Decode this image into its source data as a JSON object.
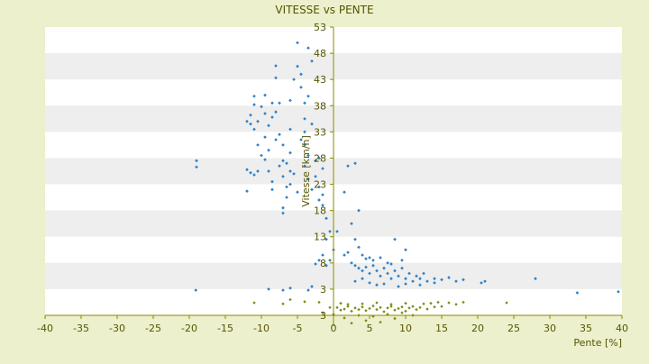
{
  "chart_data": {
    "type": "scatter",
    "title": "VITESSE vs PENTE",
    "xlabel": "Pente [%]",
    "ylabel": "Vitesse [km/h]",
    "xlim": [
      -40,
      40
    ],
    "ylim": [
      -2,
      53
    ],
    "x_ticks": [
      -40,
      -35,
      -30,
      -25,
      -20,
      -15,
      -10,
      -5,
      0,
      5,
      10,
      15,
      20,
      25,
      30,
      35,
      40
    ],
    "y_ticks": [
      3,
      8,
      13,
      18,
      23,
      28,
      33,
      38,
      43,
      48,
      53
    ],
    "y_tick_labels": [
      "3",
      "8",
      "13",
      "18",
      "23",
      "28",
      "33",
      "38",
      "43",
      "48",
      "53"
    ],
    "y_tick_label_below_axis": "3",
    "grid": "horizontal-bands",
    "colors": {
      "background": "#ecf0cc",
      "plot_band_a": "#ffffff",
      "plot_band_b": "#eeeeee",
      "axis": "#8a8a00",
      "text": "#555500",
      "series_primary": "#2f82c8",
      "series_secondary": "#7a8a10"
    },
    "series": [
      {
        "values": [
          [
            -19,
            27.5
          ],
          [
            -19,
            26.3
          ],
          [
            -19.1,
            2.8
          ],
          [
            -12,
            25.8
          ],
          [
            -11.5,
            25.2
          ],
          [
            -12,
            21.7
          ],
          [
            -11,
            24.8
          ],
          [
            -10.5,
            25.5
          ],
          [
            -11.5,
            34.5
          ],
          [
            -11.5,
            36.2
          ],
          [
            -11,
            38.2
          ],
          [
            -11,
            39.8
          ],
          [
            -10.5,
            35.0
          ],
          [
            -10,
            37.8
          ],
          [
            -9.5,
            36.5
          ],
          [
            -9.5,
            40.0
          ],
          [
            -9,
            34.2
          ],
          [
            -8.5,
            38.5
          ],
          [
            -8.5,
            35.8
          ],
          [
            -10,
            28.5
          ],
          [
            -9.5,
            27.7
          ],
          [
            -9,
            29.5
          ],
          [
            -9,
            25.5
          ],
          [
            -8.5,
            23.5
          ],
          [
            -8.5,
            22.0
          ],
          [
            -8,
            45.6
          ],
          [
            -8,
            43.3
          ],
          [
            -8,
            36.8
          ],
          [
            -7.5,
            38.5
          ],
          [
            -7.5,
            32.5
          ],
          [
            -7,
            30.5
          ],
          [
            -7,
            27.5
          ],
          [
            -7,
            24.5
          ],
          [
            -6.5,
            22.5
          ],
          [
            -7,
            18.5
          ],
          [
            -7,
            17.5
          ],
          [
            -6.5,
            20.5
          ],
          [
            -6,
            25.5
          ],
          [
            -6,
            29.0
          ],
          [
            -6,
            33.5
          ],
          [
            -6,
            39.0
          ],
          [
            -5.5,
            43.0
          ],
          [
            -5,
            50.0
          ],
          [
            -5,
            45.5
          ],
          [
            -4.5,
            44.0
          ],
          [
            -4.5,
            41.5
          ],
          [
            -4,
            38.5
          ],
          [
            -4,
            35.5
          ],
          [
            -3.5,
            39.8
          ],
          [
            -4,
            30.5
          ],
          [
            -3.5,
            28.5
          ],
          [
            -4,
            26.5
          ],
          [
            -3.5,
            24.0
          ],
          [
            -3,
            22.0
          ],
          [
            -4.5,
            31.5
          ],
          [
            -3.5,
            49.0
          ],
          [
            -3,
            46.5
          ],
          [
            -2.5,
            27.5
          ],
          [
            -2.5,
            24.5
          ],
          [
            -2,
            22.5
          ],
          [
            -1.5,
            21.0
          ],
          [
            -2,
            20.0
          ],
          [
            -1.5,
            19.0
          ],
          [
            -1,
            16.5
          ],
          [
            -0.5,
            14.0
          ],
          [
            -1,
            12.5
          ],
          [
            -1.5,
            9.5
          ],
          [
            -2,
            8.5
          ],
          [
            -2.5,
            7.8
          ],
          [
            -1,
            7.5
          ],
          [
            -0.5,
            8.5
          ],
          [
            -3,
            3.5
          ],
          [
            -3.5,
            2.8
          ],
          [
            -6,
            3.2
          ],
          [
            -7,
            2.8
          ],
          [
            -9,
            3.0
          ],
          [
            -5.5,
            25.0
          ],
          [
            -6.5,
            27.0
          ],
          [
            -8,
            31.5
          ],
          [
            -10.5,
            30.5
          ],
          [
            -11,
            33.5
          ],
          [
            -12,
            35.0
          ],
          [
            -9.5,
            32.0
          ],
          [
            -7.5,
            26.5
          ],
          [
            -5,
            21.5
          ],
          [
            -6,
            23.0
          ],
          [
            -4,
            33.0
          ],
          [
            -3,
            34.5
          ],
          [
            -2,
            28.0
          ],
          [
            -1.5,
            26.0
          ],
          [
            0,
            10.5
          ],
          [
            0.5,
            14.0
          ],
          [
            1.5,
            21.5
          ],
          [
            2,
            26.5
          ],
          [
            3,
            27.0
          ],
          [
            3.5,
            18.0
          ],
          [
            2.5,
            15.5
          ],
          [
            3,
            12.5
          ],
          [
            3.5,
            11.0
          ],
          [
            4,
            9.5
          ],
          [
            5,
            9.0
          ],
          [
            8.5,
            12.5
          ],
          [
            10,
            10.5
          ],
          [
            1.5,
            9.5
          ],
          [
            2,
            10.0
          ],
          [
            2.5,
            8.0
          ],
          [
            3,
            7.5
          ],
          [
            3.5,
            7.0
          ],
          [
            4,
            6.5
          ],
          [
            4.5,
            7.2
          ],
          [
            5,
            6.0
          ],
          [
            5.5,
            7.5
          ],
          [
            6,
            6.5
          ],
          [
            6.5,
            5.5
          ],
          [
            7,
            7.0
          ],
          [
            7.5,
            6.0
          ],
          [
            8,
            5.0
          ],
          [
            8.5,
            6.5
          ],
          [
            9,
            5.5
          ],
          [
            9.5,
            7.0
          ],
          [
            10,
            5.0
          ],
          [
            10.5,
            6.0
          ],
          [
            11,
            4.5
          ],
          [
            11.5,
            5.5
          ],
          [
            12,
            5.0
          ],
          [
            12.5,
            6.0
          ],
          [
            13,
            4.5
          ],
          [
            14,
            5.0
          ],
          [
            15,
            4.8
          ],
          [
            16,
            5.2
          ],
          [
            17,
            4.5
          ],
          [
            18,
            4.8
          ],
          [
            20.5,
            4.2
          ],
          [
            21,
            4.5
          ],
          [
            28,
            5.0
          ],
          [
            33.8,
            2.3
          ],
          [
            39.5,
            2.5
          ],
          [
            3,
            4.5
          ],
          [
            4,
            5.0
          ],
          [
            5,
            4.2
          ],
          [
            6,
            3.8
          ],
          [
            7,
            4.0
          ],
          [
            7.5,
            8.0
          ],
          [
            6.5,
            9.0
          ],
          [
            5.5,
            8.5
          ],
          [
            4.5,
            8.8
          ],
          [
            9,
            3.5
          ],
          [
            10,
            4.0
          ],
          [
            12,
            3.8
          ],
          [
            14,
            4.2
          ],
          [
            8,
            7.8
          ],
          [
            9.5,
            8.5
          ]
        ]
      },
      {
        "values": [
          [
            0.5,
            -0.5
          ],
          [
            1,
            -1.0
          ],
          [
            1.5,
            -0.8
          ],
          [
            2,
            -0.3
          ],
          [
            2.5,
            -1.2
          ],
          [
            3,
            -0.6
          ],
          [
            3.5,
            -0.9
          ],
          [
            4,
            -0.4
          ],
          [
            4.5,
            -1.1
          ],
          [
            5,
            -0.7
          ],
          [
            5.5,
            -0.2
          ],
          [
            6,
            -0.9
          ],
          [
            6.5,
            -0.5
          ],
          [
            7,
            -1.3
          ],
          [
            7.5,
            -0.6
          ],
          [
            8,
            -0.3
          ],
          [
            8.5,
            -1.0
          ],
          [
            9,
            -0.7
          ],
          [
            9.5,
            -0.4
          ],
          [
            10,
            -1.2
          ],
          [
            10.5,
            -0.6
          ],
          [
            11,
            -0.3
          ],
          [
            11.5,
            -0.9
          ],
          [
            12,
            -0.5
          ],
          [
            12.5,
            0.2
          ],
          [
            13,
            -0.8
          ],
          [
            13.5,
            0.3
          ],
          [
            14,
            -0.4
          ],
          [
            14.5,
            0.5
          ],
          [
            15,
            -0.3
          ],
          [
            16,
            0.4
          ],
          [
            17,
            0.1
          ],
          [
            18,
            0.5
          ],
          [
            24,
            0.4
          ],
          [
            1,
            0.3
          ],
          [
            2,
            0.1
          ],
          [
            4,
            0.2
          ],
          [
            6,
            0.4
          ],
          [
            8,
            0.1
          ],
          [
            10,
            0.3
          ],
          [
            1.5,
            -2.5
          ],
          [
            2.5,
            -3.5
          ],
          [
            3.5,
            -2.0
          ],
          [
            4.5,
            -3.0
          ],
          [
            5.5,
            -2.2
          ],
          [
            6.5,
            -3.3
          ],
          [
            7.5,
            -1.8
          ],
          [
            8.5,
            -2.6
          ],
          [
            9.5,
            -1.5
          ],
          [
            11,
            -2.0
          ],
          [
            -1.5,
            -1.5
          ],
          [
            -2,
            0.5
          ],
          [
            -11,
            0.4
          ],
          [
            -7,
            0.2
          ],
          [
            -4,
            0.6
          ],
          [
            -0.5,
            -0.5
          ],
          [
            -6,
            1.0
          ],
          [
            0,
            -1.8
          ]
        ]
      }
    ]
  }
}
